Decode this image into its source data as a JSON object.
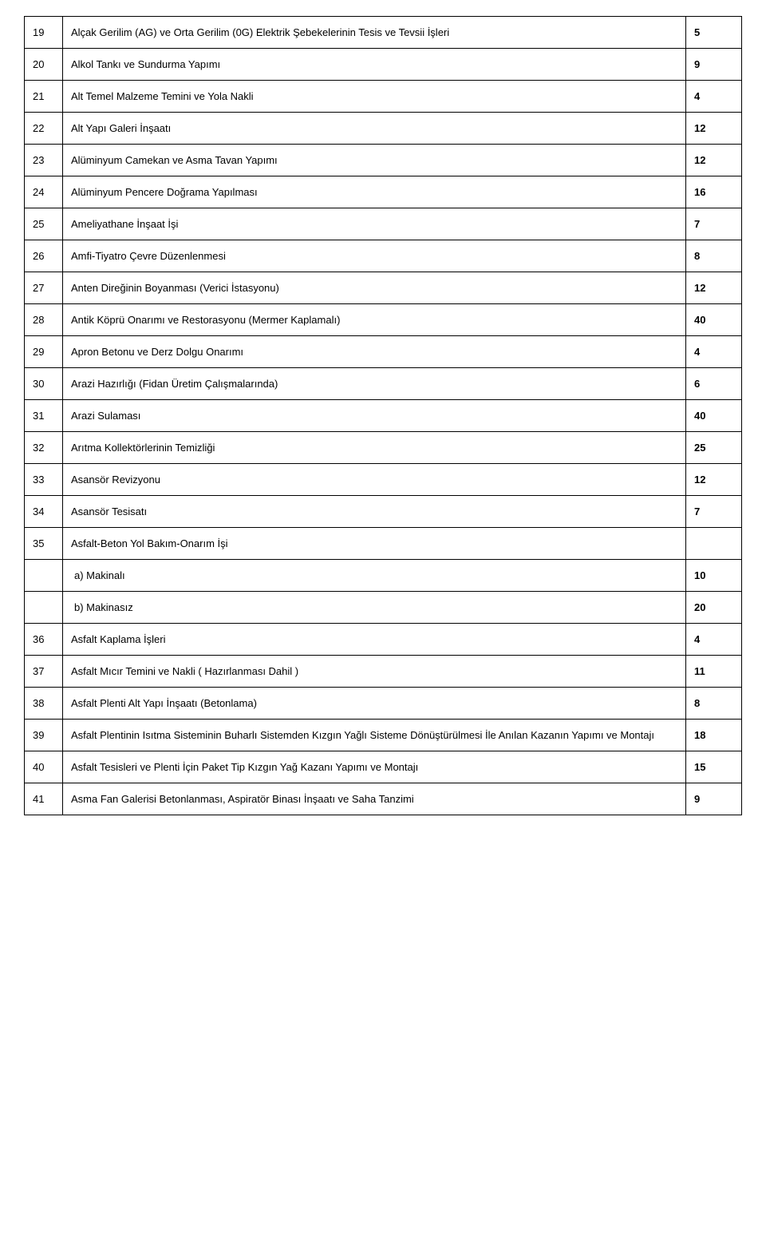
{
  "rows": [
    {
      "num": "19",
      "desc": "Alçak Gerilim (AG) ve Orta Gerilim (0G) Elektrik Şebekelerinin Tesis ve Tevsii İşleri",
      "val": "5"
    },
    {
      "num": "20",
      "desc": "Alkol Tankı ve Sundurma Yapımı",
      "val": "9"
    },
    {
      "num": "21",
      "desc": "Alt Temel Malzeme Temini ve Yola Nakli",
      "val": "4"
    },
    {
      "num": "22",
      "desc": "Alt Yapı Galeri İnşaatı",
      "val": "12"
    },
    {
      "num": "23",
      "desc": "Alüminyum Camekan ve Asma Tavan Yapımı",
      "val": "12"
    },
    {
      "num": "24",
      "desc": "Alüminyum Pencere Doğrama Yapılması",
      "val": "16"
    },
    {
      "num": "25",
      "desc": "Ameliyathane İnşaat İşi",
      "val": "7"
    },
    {
      "num": "26",
      "desc": "Amfi-Tiyatro Çevre Düzenlenmesi",
      "val": "8"
    },
    {
      "num": "27",
      "desc": "Anten Direğinin Boyanması (Verici İstasyonu)",
      "val": "12"
    },
    {
      "num": "28",
      "desc": "Antik Köprü Onarımı ve Restorasyonu (Mermer Kaplamalı)",
      "val": "40"
    },
    {
      "num": "29",
      "desc": "Apron Betonu ve Derz Dolgu Onarımı",
      "val": "4"
    },
    {
      "num": "30",
      "desc": "Arazi Hazırlığı (Fidan Üretim Çalışmalarında)",
      "val": "6"
    },
    {
      "num": "31",
      "desc": "Arazi Sulaması",
      "val": "40"
    },
    {
      "num": "32",
      "desc": "Arıtma Kollektörlerinin Temizliği",
      "val": "25"
    },
    {
      "num": "33",
      "desc": "Asansör Revizyonu",
      "val": "12"
    },
    {
      "num": "34",
      "desc": "Asansör Tesisatı",
      "val": "7"
    },
    {
      "num": "35",
      "desc": "Asfalt-Beton Yol Bakım-Onarım İşi",
      "val": ""
    },
    {
      "num": "",
      "desc": "a) Makinalı",
      "val": "10",
      "sub": true
    },
    {
      "num": "",
      "desc": "b) Makinasız",
      "val": "20",
      "sub": true
    },
    {
      "num": "36",
      "desc": "Asfalt Kaplama İşleri",
      "val": "4"
    },
    {
      "num": "37",
      "desc": "Asfalt Mıcır Temini ve Nakli ( Hazırlanması Dahil )",
      "val": "11"
    },
    {
      "num": "38",
      "desc": "Asfalt Plenti Alt Yapı İnşaatı (Betonlama)",
      "val": "8"
    },
    {
      "num": "39",
      "desc": "Asfalt Plentinin Isıtma Sisteminin Buharlı Sistemden Kızgın Yağlı Sisteme Dönüştürülmesi İle Anılan Kazanın Yapımı ve Montajı",
      "val": "18"
    },
    {
      "num": "40",
      "desc": "Asfalt Tesisleri ve Plenti İçin Paket Tip Kızgın Yağ Kazanı Yapımı ve Montajı",
      "val": "15"
    },
    {
      "num": "41",
      "desc": "Asma Fan Galerisi Betonlanması, Aspiratör Binası İnşaatı ve Saha Tanzimi",
      "val": "9"
    }
  ]
}
